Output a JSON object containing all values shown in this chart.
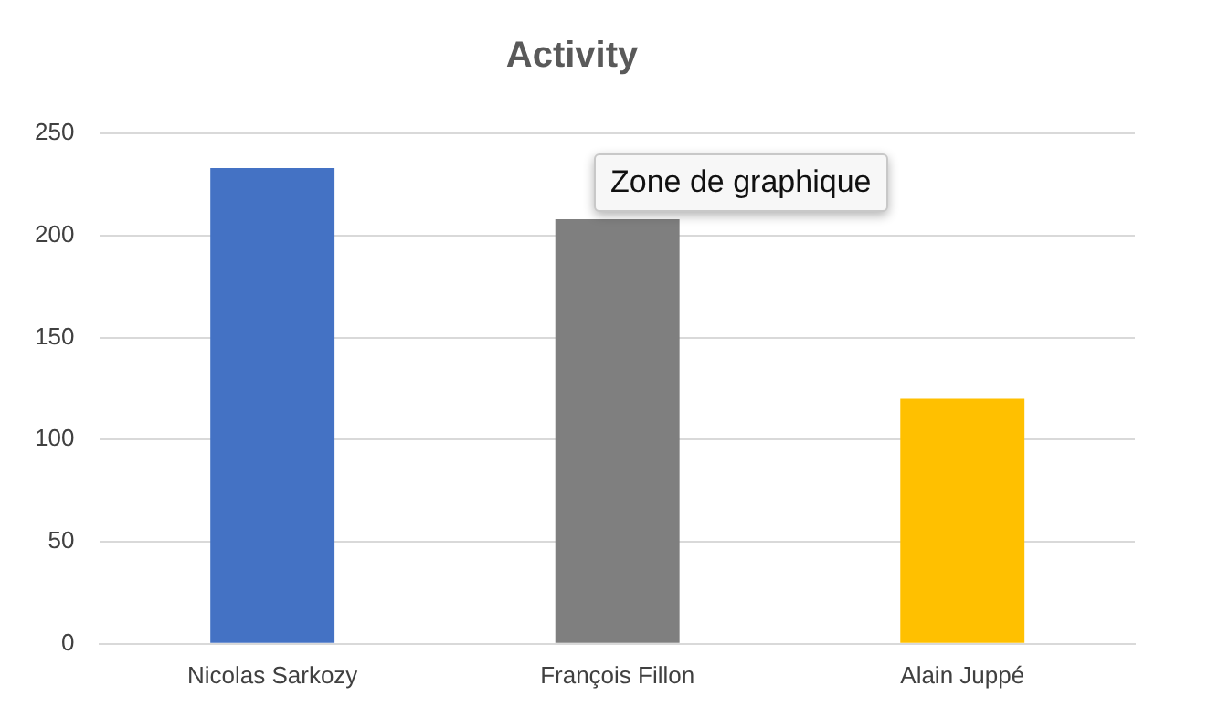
{
  "chart_data": {
    "type": "bar",
    "title": "Activity",
    "categories": [
      "Nicolas Sarkozy",
      "François Fillon",
      "Alain Juppé"
    ],
    "values": [
      233,
      208,
      120
    ],
    "colors": [
      "#4472c4",
      "#7f7f7f",
      "#ffc000"
    ],
    "ylim": [
      0,
      250
    ],
    "yticks": [
      0,
      50,
      100,
      150,
      200,
      250
    ],
    "grid": "y",
    "legend": false,
    "annotations": [
      "Zone de graphique"
    ]
  }
}
